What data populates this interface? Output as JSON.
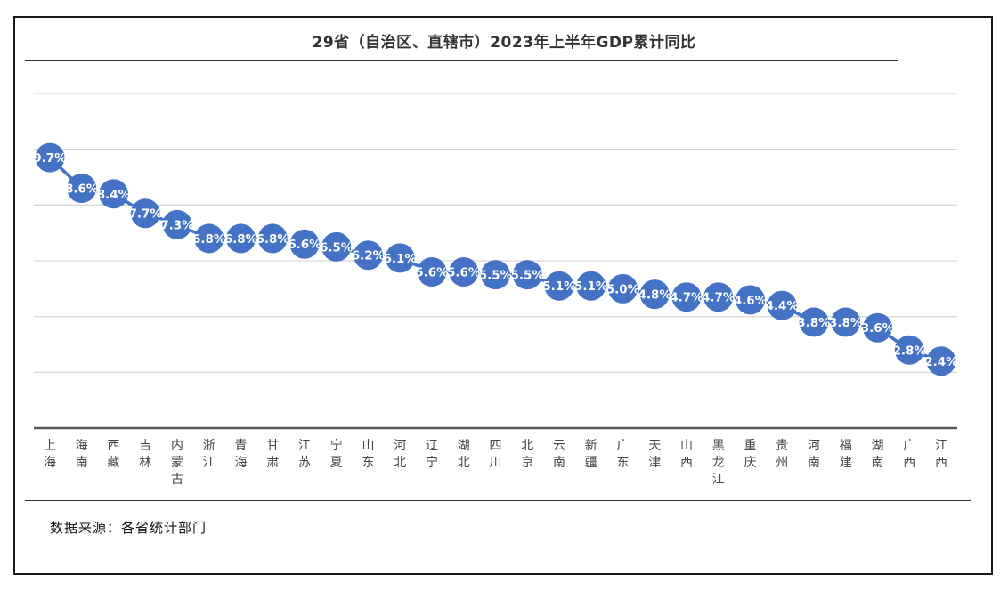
{
  "title": "29省（自治区、直辖市）2023年上半年GDP累计同比",
  "source": "数据来源：各省统计部门",
  "colors": {
    "series": "#4472C4",
    "grid": "#d9d9d9",
    "axis": "#595959"
  },
  "chart_data": {
    "type": "line",
    "title": "29省（自治区、直辖市）2023年上半年GDP累计同比",
    "xlabel": "",
    "ylabel": "",
    "grid": true,
    "legend": "none",
    "categories": [
      "上海",
      "海南",
      "西藏",
      "吉林",
      "内蒙古",
      "浙江",
      "青海",
      "甘肃",
      "江苏",
      "宁夏",
      "山东",
      "河北",
      "辽宁",
      "湖北",
      "四川",
      "北京",
      "云南",
      "新疆",
      "广东",
      "天津",
      "山西",
      "黑龙江",
      "重庆",
      "贵州",
      "河南",
      "福建",
      "湖南",
      "广西",
      "江西"
    ],
    "values": [
      9.7,
      8.6,
      8.4,
      7.7,
      7.3,
      6.8,
      6.8,
      6.8,
      6.6,
      6.5,
      6.2,
      6.1,
      5.6,
      5.6,
      5.5,
      5.5,
      5.1,
      5.1,
      5.0,
      4.8,
      4.7,
      4.7,
      4.6,
      4.4,
      3.8,
      3.8,
      3.6,
      2.8,
      2.4
    ],
    "value_labels": [
      "9.7%",
      "8.6%",
      "8.4%",
      "7.7%",
      "7.3%",
      "6.8%",
      "6.8%",
      "6.8%",
      "6.6%",
      "6.5%",
      "6.2%",
      "6.1%",
      "5.6%",
      "5.6%",
      "5.5%",
      "5.5%",
      "5.1%",
      "5.1%",
      "5.0%",
      "4.8%",
      "4.7%",
      "4.7%",
      "4.6%",
      "4.4%",
      "3.8%",
      "3.8%",
      "3.6%",
      "2.8%",
      "2.4%"
    ],
    "ylim": [
      0,
      12
    ],
    "yticks": [
      0,
      2,
      4,
      6,
      8,
      10,
      12
    ],
    "ytick_labels_visible": false
  }
}
